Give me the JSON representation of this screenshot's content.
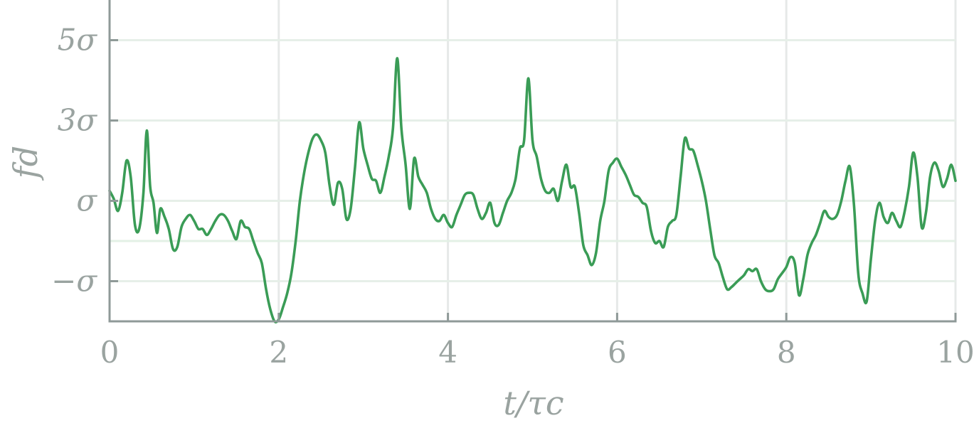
{
  "chart_data": {
    "type": "line",
    "title": "",
    "xlabel": "t/τc",
    "ylabel": "fd",
    "xlim": [
      0,
      10
    ],
    "ylim": [
      -2.0,
      6.0
    ],
    "grid": true,
    "x_ticks": [
      {
        "value": 0,
        "label": "0"
      },
      {
        "value": 2,
        "label": "2"
      },
      {
        "value": 4,
        "label": "4"
      },
      {
        "value": 6,
        "label": "6"
      },
      {
        "value": 8,
        "label": "8"
      },
      {
        "value": 10,
        "label": "10"
      }
    ],
    "y_ticks": [
      {
        "value": -1,
        "label": "−σ"
      },
      {
        "value": 1,
        "label": "σ"
      },
      {
        "value": 3,
        "label": "3σ"
      },
      {
        "value": 5,
        "label": "5σ"
      }
    ],
    "reference_lines": [
      {
        "axis": "y",
        "value": 0
      }
    ],
    "series": [
      {
        "color": "#3a9c56",
        "points": [
          [
            0.0,
            1.25
          ],
          [
            0.05,
            1.05
          ],
          [
            0.1,
            0.75
          ],
          [
            0.15,
            1.2
          ],
          [
            0.2,
            2.0
          ],
          [
            0.25,
            1.6
          ],
          [
            0.3,
            0.4
          ],
          [
            0.35,
            0.3
          ],
          [
            0.4,
            1.2
          ],
          [
            0.44,
            2.75
          ],
          [
            0.48,
            1.35
          ],
          [
            0.52,
            0.95
          ],
          [
            0.56,
            0.2
          ],
          [
            0.6,
            0.8
          ],
          [
            0.65,
            0.6
          ],
          [
            0.7,
            0.3
          ],
          [
            0.75,
            -0.2
          ],
          [
            0.8,
            -0.15
          ],
          [
            0.85,
            0.35
          ],
          [
            0.9,
            0.55
          ],
          [
            0.95,
            0.65
          ],
          [
            1.0,
            0.5
          ],
          [
            1.05,
            0.3
          ],
          [
            1.1,
            0.3
          ],
          [
            1.15,
            0.15
          ],
          [
            1.2,
            0.3
          ],
          [
            1.25,
            0.5
          ],
          [
            1.3,
            0.65
          ],
          [
            1.35,
            0.65
          ],
          [
            1.4,
            0.5
          ],
          [
            1.45,
            0.25
          ],
          [
            1.5,
            0.05
          ],
          [
            1.55,
            0.5
          ],
          [
            1.6,
            0.35
          ],
          [
            1.65,
            0.3
          ],
          [
            1.7,
            0.0
          ],
          [
            1.75,
            -0.3
          ],
          [
            1.8,
            -0.55
          ],
          [
            1.85,
            -1.2
          ],
          [
            1.9,
            -1.7
          ],
          [
            1.95,
            -2.0
          ],
          [
            2.0,
            -1.95
          ],
          [
            2.05,
            -1.65
          ],
          [
            2.1,
            -1.3
          ],
          [
            2.15,
            -0.8
          ],
          [
            2.2,
            0.0
          ],
          [
            2.25,
            1.0
          ],
          [
            2.3,
            1.7
          ],
          [
            2.35,
            2.2
          ],
          [
            2.4,
            2.55
          ],
          [
            2.45,
            2.65
          ],
          [
            2.5,
            2.5
          ],
          [
            2.55,
            2.2
          ],
          [
            2.6,
            1.4
          ],
          [
            2.65,
            0.9
          ],
          [
            2.7,
            1.45
          ],
          [
            2.75,
            1.3
          ],
          [
            2.8,
            0.55
          ],
          [
            2.85,
            0.8
          ],
          [
            2.9,
            1.8
          ],
          [
            2.95,
            2.95
          ],
          [
            3.0,
            2.3
          ],
          [
            3.05,
            1.9
          ],
          [
            3.1,
            1.55
          ],
          [
            3.15,
            1.5
          ],
          [
            3.2,
            1.2
          ],
          [
            3.25,
            1.6
          ],
          [
            3.3,
            2.1
          ],
          [
            3.35,
            2.8
          ],
          [
            3.4,
            4.55
          ],
          [
            3.45,
            2.8
          ],
          [
            3.5,
            1.9
          ],
          [
            3.55,
            0.8
          ],
          [
            3.6,
            2.05
          ],
          [
            3.65,
            1.6
          ],
          [
            3.7,
            1.4
          ],
          [
            3.75,
            1.2
          ],
          [
            3.8,
            0.8
          ],
          [
            3.85,
            0.55
          ],
          [
            3.9,
            0.5
          ],
          [
            3.95,
            0.65
          ],
          [
            4.0,
            0.45
          ],
          [
            4.05,
            0.35
          ],
          [
            4.1,
            0.65
          ],
          [
            4.15,
            0.9
          ],
          [
            4.2,
            1.15
          ],
          [
            4.25,
            1.2
          ],
          [
            4.3,
            1.15
          ],
          [
            4.35,
            0.8
          ],
          [
            4.4,
            0.55
          ],
          [
            4.45,
            0.7
          ],
          [
            4.5,
            0.95
          ],
          [
            4.55,
            0.45
          ],
          [
            4.6,
            0.4
          ],
          [
            4.65,
            0.7
          ],
          [
            4.7,
            1.0
          ],
          [
            4.75,
            1.2
          ],
          [
            4.8,
            1.55
          ],
          [
            4.85,
            2.3
          ],
          [
            4.9,
            2.5
          ],
          [
            4.95,
            4.05
          ],
          [
            5.0,
            2.5
          ],
          [
            5.05,
            2.1
          ],
          [
            5.1,
            1.55
          ],
          [
            5.15,
            1.25
          ],
          [
            5.2,
            1.2
          ],
          [
            5.25,
            1.3
          ],
          [
            5.3,
            1.0
          ],
          [
            5.35,
            1.5
          ],
          [
            5.4,
            1.9
          ],
          [
            5.45,
            1.35
          ],
          [
            5.5,
            1.35
          ],
          [
            5.55,
            0.7
          ],
          [
            5.6,
            -0.1
          ],
          [
            5.65,
            -0.35
          ],
          [
            5.7,
            -0.6
          ],
          [
            5.75,
            -0.3
          ],
          [
            5.8,
            0.5
          ],
          [
            5.85,
            1.0
          ],
          [
            5.9,
            1.75
          ],
          [
            5.95,
            1.95
          ],
          [
            6.0,
            2.05
          ],
          [
            6.05,
            1.85
          ],
          [
            6.1,
            1.65
          ],
          [
            6.15,
            1.4
          ],
          [
            6.2,
            1.15
          ],
          [
            6.25,
            1.1
          ],
          [
            6.3,
            0.95
          ],
          [
            6.35,
            0.85
          ],
          [
            6.4,
            0.25
          ],
          [
            6.45,
            -0.05
          ],
          [
            6.5,
            0.0
          ],
          [
            6.55,
            -0.15
          ],
          [
            6.6,
            0.35
          ],
          [
            6.65,
            0.5
          ],
          [
            6.7,
            0.65
          ],
          [
            6.75,
            1.6
          ],
          [
            6.8,
            2.55
          ],
          [
            6.85,
            2.3
          ],
          [
            6.9,
            2.25
          ],
          [
            6.95,
            1.9
          ],
          [
            7.0,
            1.5
          ],
          [
            7.05,
            1.0
          ],
          [
            7.1,
            0.3
          ],
          [
            7.15,
            -0.35
          ],
          [
            7.2,
            -0.55
          ],
          [
            7.25,
            -0.9
          ],
          [
            7.3,
            -1.2
          ],
          [
            7.35,
            -1.15
          ],
          [
            7.4,
            -1.05
          ],
          [
            7.45,
            -0.95
          ],
          [
            7.5,
            -0.85
          ],
          [
            7.55,
            -0.7
          ],
          [
            7.6,
            -0.75
          ],
          [
            7.65,
            -0.7
          ],
          [
            7.7,
            -1.0
          ],
          [
            7.75,
            -1.2
          ],
          [
            7.8,
            -1.25
          ],
          [
            7.85,
            -1.2
          ],
          [
            7.9,
            -0.95
          ],
          [
            7.95,
            -0.8
          ],
          [
            8.0,
            -0.65
          ],
          [
            8.05,
            -0.4
          ],
          [
            8.1,
            -0.55
          ],
          [
            8.15,
            -1.35
          ],
          [
            8.2,
            -0.95
          ],
          [
            8.25,
            -0.35
          ],
          [
            8.3,
            -0.05
          ],
          [
            8.35,
            0.15
          ],
          [
            8.4,
            0.45
          ],
          [
            8.45,
            0.75
          ],
          [
            8.5,
            0.6
          ],
          [
            8.55,
            0.55
          ],
          [
            8.6,
            0.65
          ],
          [
            8.65,
            1.0
          ],
          [
            8.7,
            1.5
          ],
          [
            8.75,
            1.85
          ],
          [
            8.8,
            0.9
          ],
          [
            8.85,
            -0.8
          ],
          [
            8.9,
            -1.3
          ],
          [
            8.95,
            -1.5
          ],
          [
            9.0,
            -0.45
          ],
          [
            9.05,
            0.5
          ],
          [
            9.1,
            0.95
          ],
          [
            9.15,
            0.6
          ],
          [
            9.2,
            0.45
          ],
          [
            9.25,
            0.7
          ],
          [
            9.3,
            0.5
          ],
          [
            9.35,
            0.35
          ],
          [
            9.4,
            0.75
          ],
          [
            9.45,
            1.35
          ],
          [
            9.5,
            2.2
          ],
          [
            9.55,
            1.6
          ],
          [
            9.6,
            0.35
          ],
          [
            9.65,
            0.7
          ],
          [
            9.7,
            1.6
          ],
          [
            9.75,
            1.95
          ],
          [
            9.8,
            1.75
          ],
          [
            9.85,
            1.35
          ],
          [
            9.9,
            1.55
          ],
          [
            9.95,
            1.9
          ],
          [
            10.0,
            1.5
          ]
        ]
      }
    ]
  }
}
